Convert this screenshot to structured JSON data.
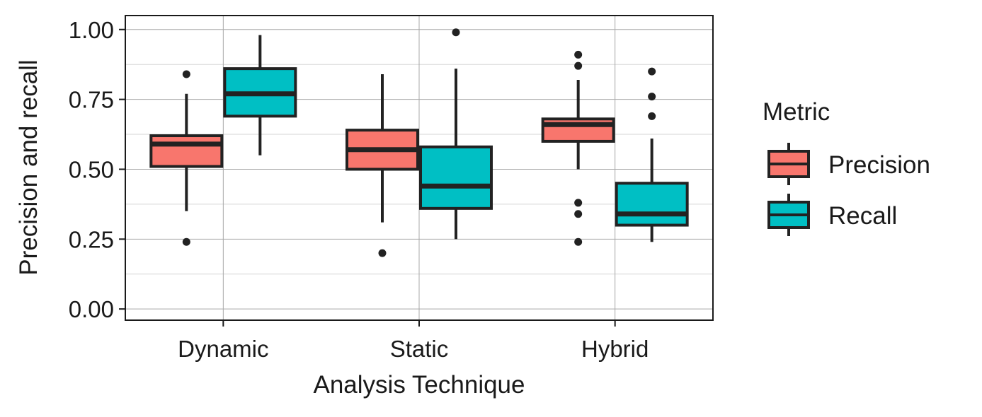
{
  "chart_data": {
    "type": "boxplot",
    "xlabel": "Analysis Technique",
    "ylabel": "Precision and recall",
    "ylim": [
      -0.04,
      1.05
    ],
    "yticks": [
      "0.00",
      "0.25",
      "0.50",
      "0.75",
      "1.00"
    ],
    "categories": [
      "Dynamic",
      "Static",
      "Hybrid"
    ],
    "grid": true,
    "legend": {
      "title": "Metric",
      "position": "right",
      "items": [
        "Precision",
        "Recall"
      ]
    },
    "series": [
      {
        "name": "Precision",
        "color": "#F8766D",
        "boxes": [
          {
            "category": "Dynamic",
            "lower_whisker": 0.35,
            "q1": 0.51,
            "median": 0.59,
            "q3": 0.62,
            "upper_whisker": 0.77,
            "outliers": [
              0.84,
              0.24
            ]
          },
          {
            "category": "Static",
            "lower_whisker": 0.31,
            "q1": 0.5,
            "median": 0.57,
            "q3": 0.64,
            "upper_whisker": 0.84,
            "outliers": [
              0.2
            ]
          },
          {
            "category": "Hybrid",
            "lower_whisker": 0.5,
            "q1": 0.6,
            "median": 0.66,
            "q3": 0.68,
            "upper_whisker": 0.82,
            "outliers": [
              0.91,
              0.87,
              0.38,
              0.34,
              0.24
            ]
          }
        ]
      },
      {
        "name": "Recall",
        "color": "#00BFC4",
        "boxes": [
          {
            "category": "Dynamic",
            "lower_whisker": 0.55,
            "q1": 0.69,
            "median": 0.77,
            "q3": 0.86,
            "upper_whisker": 0.98,
            "outliers": []
          },
          {
            "category": "Static",
            "lower_whisker": 0.25,
            "q1": 0.36,
            "median": 0.44,
            "q3": 0.58,
            "upper_whisker": 0.86,
            "outliers": [
              0.99
            ]
          },
          {
            "category": "Hybrid",
            "lower_whisker": 0.24,
            "q1": 0.3,
            "median": 0.34,
            "q3": 0.45,
            "upper_whisker": 0.61,
            "outliers": [
              0.85,
              0.76,
              0.69
            ]
          }
        ]
      }
    ]
  }
}
